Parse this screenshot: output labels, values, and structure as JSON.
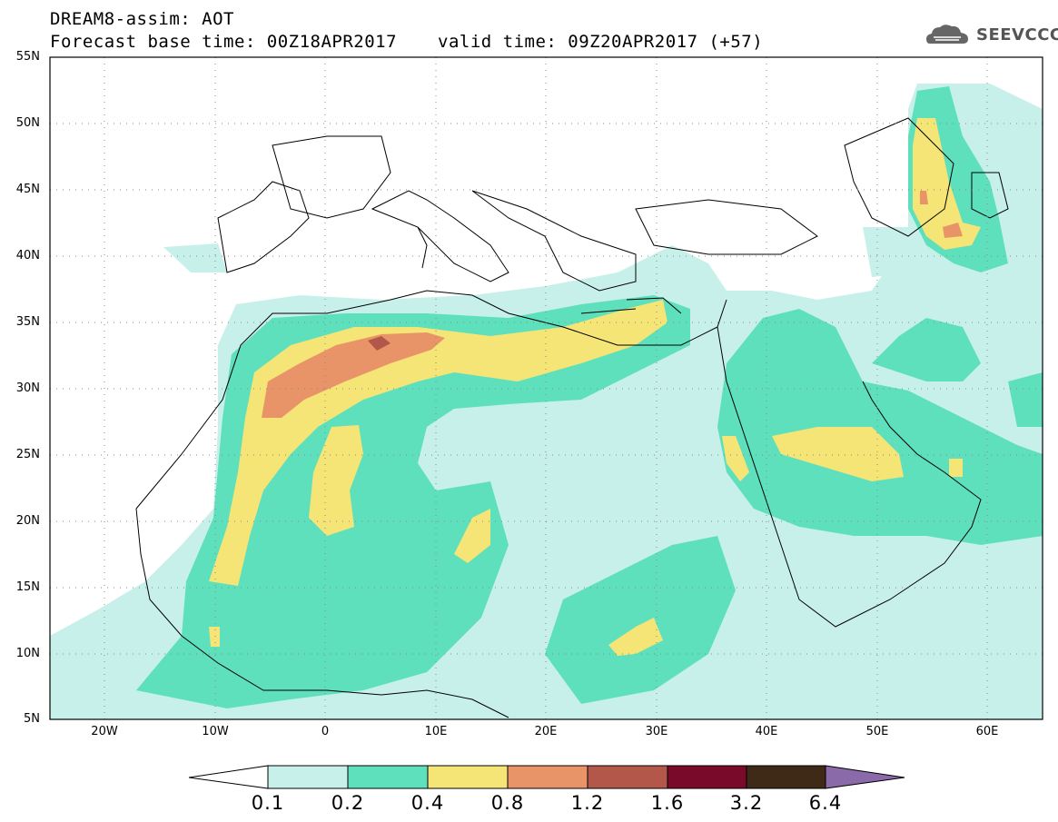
{
  "header": {
    "line1": "DREAM8-assim: AOT",
    "line2a": "Forecast base time: 00Z18APR2017",
    "line2b": "valid time: 09Z20APR2017 (+57)"
  },
  "logo": {
    "text": "SEEVCCC",
    "icon": "cloud-icon"
  },
  "axes": {
    "lat_labels": [
      "55N",
      "50N",
      "45N",
      "40N",
      "35N",
      "30N",
      "25N",
      "20N",
      "15N",
      "10N",
      "5N"
    ],
    "lon_labels": [
      "20W",
      "10W",
      "0",
      "10E",
      "20E",
      "30E",
      "40E",
      "50E",
      "60E"
    ],
    "lat_range": [
      5,
      55
    ],
    "lon_range": [
      -25,
      65
    ],
    "grid": "dotted"
  },
  "colorbar": {
    "labels": [
      "0.1",
      "0.2",
      "0.4",
      "0.8",
      "1.2",
      "1.6",
      "3.2",
      "6.4"
    ],
    "colors": [
      "#ffffff",
      "#c8f0ea",
      "#5fe0bd",
      "#f5e476",
      "#e89468",
      "#b2574a",
      "#7a0a2a",
      "#3f2a18",
      "#8a6aa8"
    ]
  }
}
